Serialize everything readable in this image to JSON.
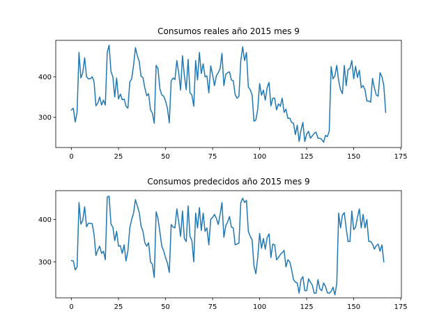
{
  "chart_data": [
    {
      "type": "line",
      "title": "Consumos reales año 2015 mes 9",
      "xlim": [
        -8.35,
        175.35
      ],
      "ylim": [
        225,
        490
      ],
      "xticks": [
        0,
        25,
        50,
        75,
        100,
        125,
        150,
        175
      ],
      "yticks": [
        300,
        400
      ],
      "color": "#1f77b4",
      "series": [
        {
          "values": [
            318,
            322,
            288,
            313,
            460,
            397,
            410,
            447,
            400,
            395,
            395,
            400,
            388,
            328,
            335,
            350,
            330,
            342,
            330,
            460,
            478,
            413,
            400,
            350,
            397,
            345,
            357,
            343,
            345,
            327,
            322,
            387,
            395,
            428,
            472,
            452,
            438,
            401,
            398,
            372,
            353,
            358,
            318,
            310,
            285,
            428,
            420,
            370,
            355,
            352,
            340,
            322,
            286,
            390,
            397,
            393,
            440,
            410,
            367,
            452,
            403,
            368,
            443,
            360,
            355,
            327,
            440,
            392,
            460,
            408,
            432,
            400,
            402,
            360,
            427,
            405,
            378,
            402,
            410,
            420,
            458,
            378,
            406,
            410,
            412,
            392,
            390,
            356,
            347,
            352,
            440,
            474,
            440,
            460,
            375,
            368,
            355,
            290,
            293,
            320,
            383,
            354,
            367,
            342,
            373,
            386,
            328,
            347,
            347,
            318,
            333,
            327,
            347,
            312,
            320,
            297,
            298,
            287,
            285,
            257,
            280,
            240,
            268,
            287,
            240,
            258,
            265,
            248,
            254,
            260,
            263,
            248,
            248,
            245,
            238,
            255,
            252,
            265,
            425,
            395,
            402,
            428,
            390,
            368,
            358,
            428,
            378,
            418,
            420,
            440,
            395,
            426,
            398,
            416,
            373,
            378,
            368,
            340,
            340,
            337,
            396,
            372,
            355,
            352,
            410,
            400,
            378,
            312
          ]
        }
      ]
    },
    {
      "type": "line",
      "title": "Consumos predecidos año 2015 mes 9",
      "xlim": [
        -8.35,
        175.35
      ],
      "ylim": [
        215,
        468
      ],
      "xticks": [
        0,
        25,
        50,
        75,
        100,
        125,
        150,
        175
      ],
      "yticks": [
        300,
        400
      ],
      "color": "#1f77b4",
      "series": [
        {
          "values": [
            303,
            302,
            281,
            288,
            440,
            389,
            398,
            430,
            383,
            391,
            391,
            390,
            365,
            315,
            328,
            337,
            320,
            325,
            305,
            453,
            455,
            389,
            382,
            350,
            372,
            337,
            338,
            320,
            340,
            302,
            326,
            380,
            400,
            415,
            447,
            432,
            417,
            384,
            372,
            345,
            337,
            345,
            300,
            294,
            263,
            418,
            402,
            370,
            337,
            326,
            310,
            297,
            275,
            388,
            382,
            380,
            425,
            395,
            360,
            420,
            355,
            348,
            432,
            360,
            350,
            300,
            415,
            380,
            428,
            374,
            415,
            372,
            380,
            340,
            400,
            405,
            412,
            403,
            388,
            412,
            440,
            358,
            385,
            394,
            407,
            382,
            380,
            340,
            342,
            344,
            440,
            450,
            440,
            445,
            372,
            360,
            352,
            290,
            272,
            310,
            367,
            332,
            355,
            330,
            357,
            366,
            310,
            342,
            340,
            305,
            310,
            317,
            322,
            327,
            288,
            305,
            300,
            282,
            258,
            252,
            250,
            226,
            258,
            265,
            232,
            232,
            260,
            252,
            245,
            226,
            226,
            258,
            236,
            232,
            250,
            242,
            227,
            226,
            230,
            240,
            222,
            248,
            415,
            380,
            410,
            416,
            379,
            348,
            348,
            420,
            376,
            382,
            405,
            425,
            380,
            412,
            380,
            400,
            348,
            348,
            342,
            330,
            338,
            342,
            325,
            340,
            300
          ]
        }
      ]
    }
  ]
}
